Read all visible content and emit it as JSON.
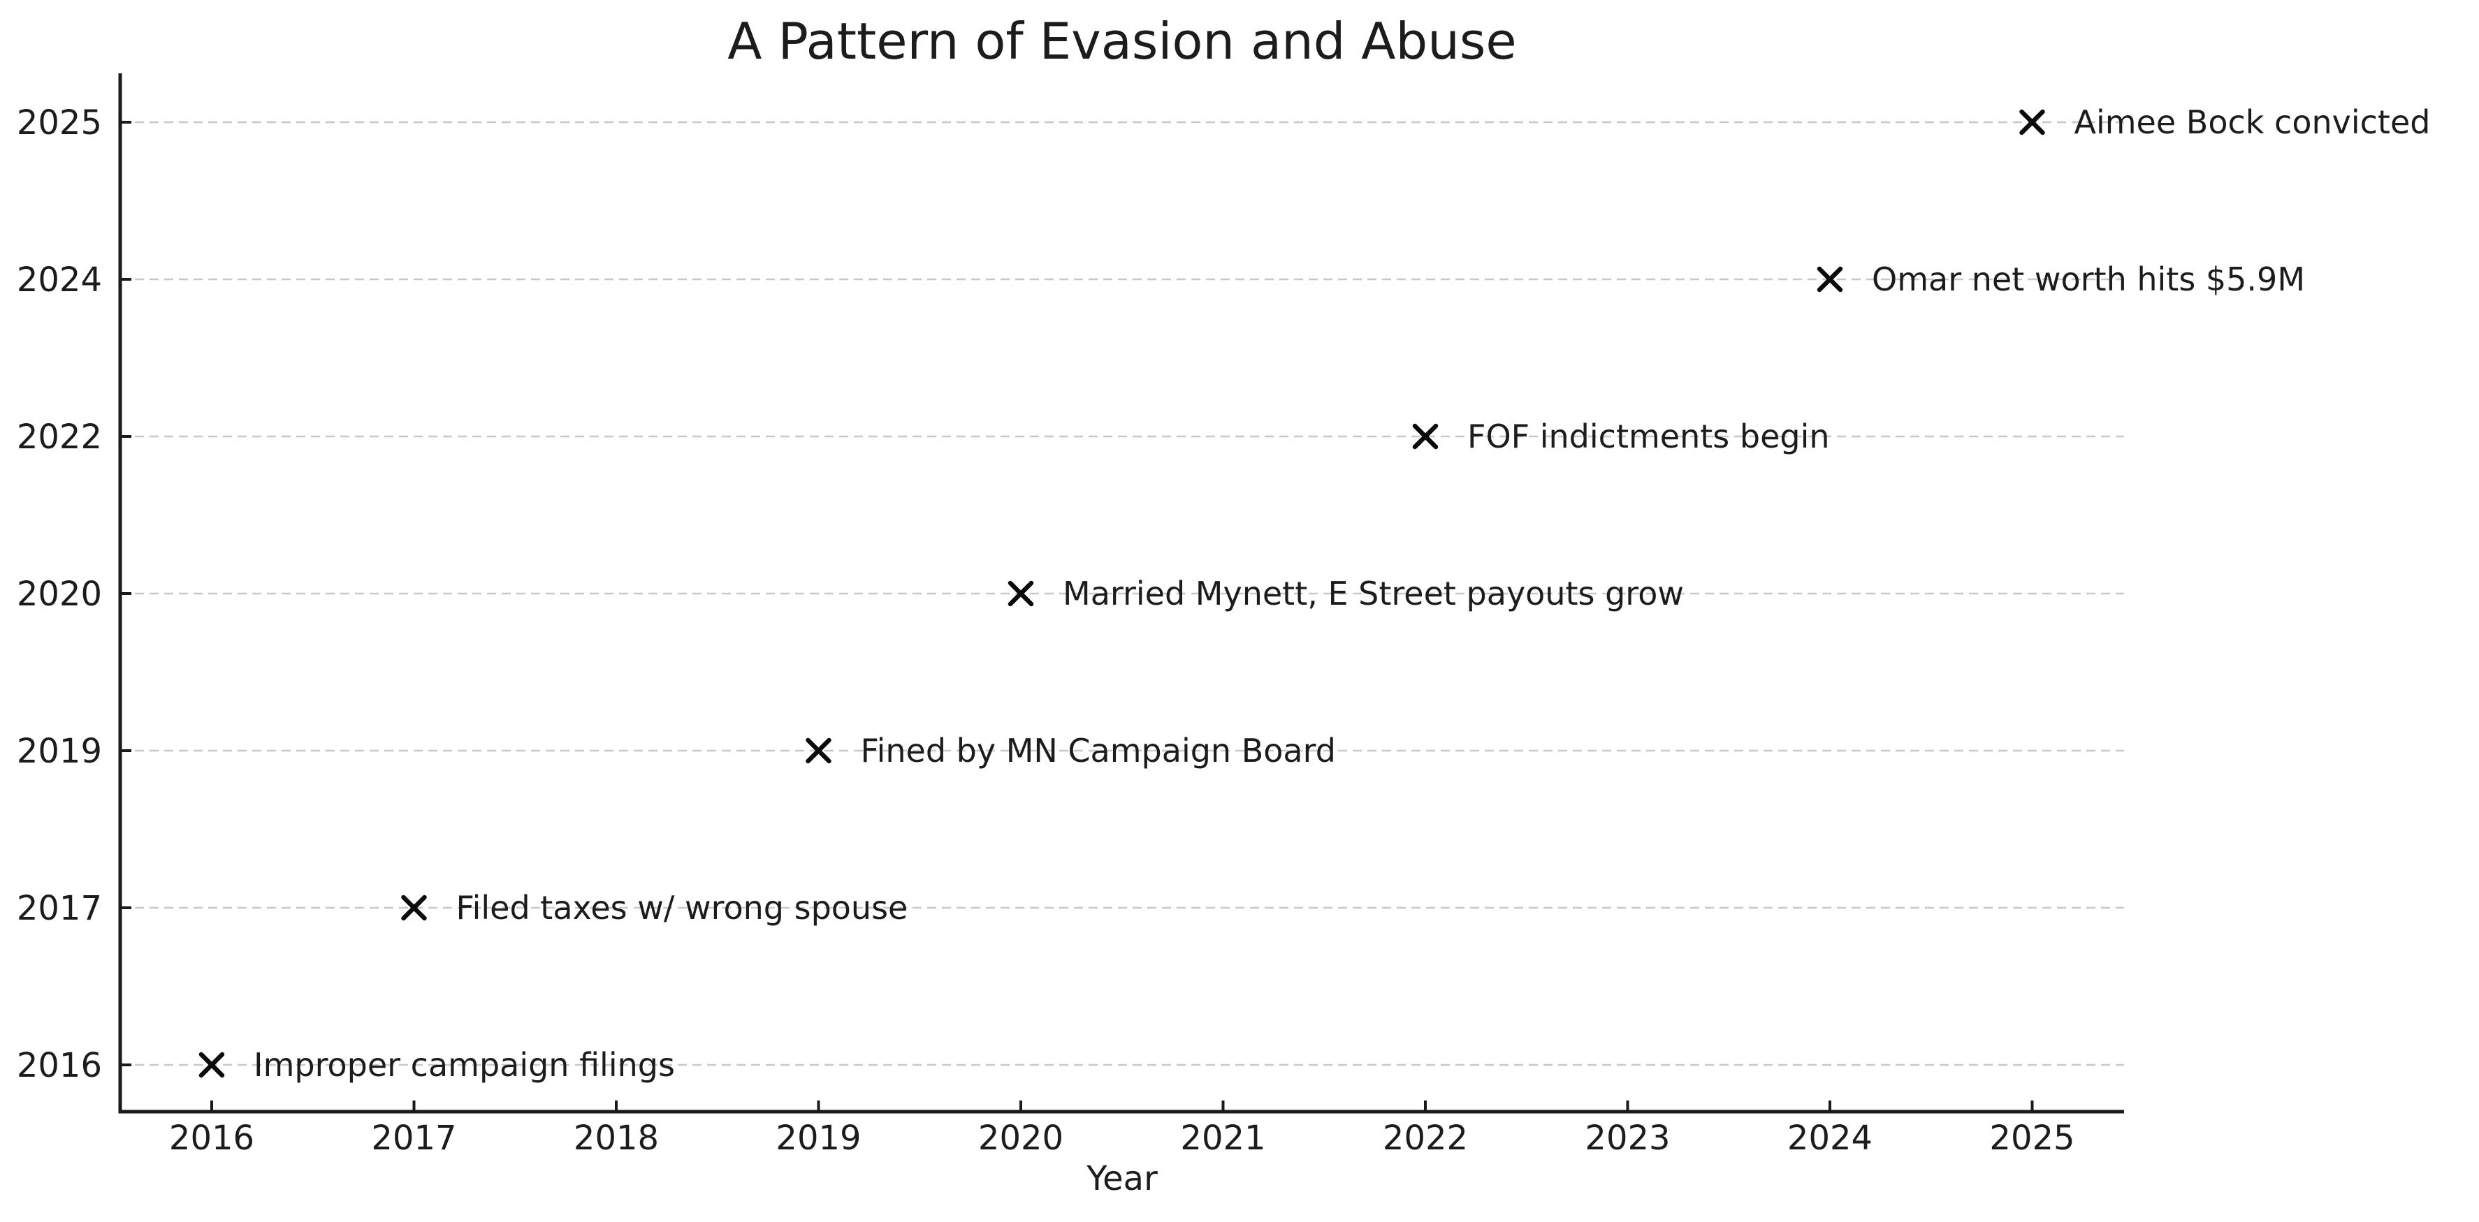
{
  "chart_data": {
    "type": "scatter",
    "title": "A Pattern of Evasion and Abuse",
    "xlabel": "Year",
    "x_ticks": [
      2016,
      2017,
      2018,
      2019,
      2020,
      2021,
      2022,
      2023,
      2024,
      2025
    ],
    "xlim": [
      2015.55,
      2025.45
    ],
    "y_categories": [
      "2025",
      "2024",
      "2022",
      "2020",
      "2019",
      "2017",
      "2016"
    ],
    "grid": "horizontal-dashed",
    "legend": "none",
    "marker": "x",
    "events": [
      {
        "year": 2016,
        "row": "2016",
        "label": "Improper campaign filings"
      },
      {
        "year": 2017,
        "row": "2017",
        "label": "Filed taxes w/ wrong spouse"
      },
      {
        "year": 2019,
        "row": "2019",
        "label": "Fined by MN Campaign Board"
      },
      {
        "year": 2020,
        "row": "2020",
        "label": "Married Mynett, E Street payouts grow"
      },
      {
        "year": 2022,
        "row": "2022",
        "label": "FOF indictments begin"
      },
      {
        "year": 2024,
        "row": "2024",
        "label": "Omar net worth hits $5.9M"
      },
      {
        "year": 2025,
        "row": "2025",
        "label": "Aimee Bock convicted"
      }
    ],
    "colors": {
      "text": "#1c1c1c",
      "marker": "#0a0a0a",
      "grid": "#c8c8c8",
      "spine": "#1a1a1a",
      "background": "#ffffff"
    }
  }
}
